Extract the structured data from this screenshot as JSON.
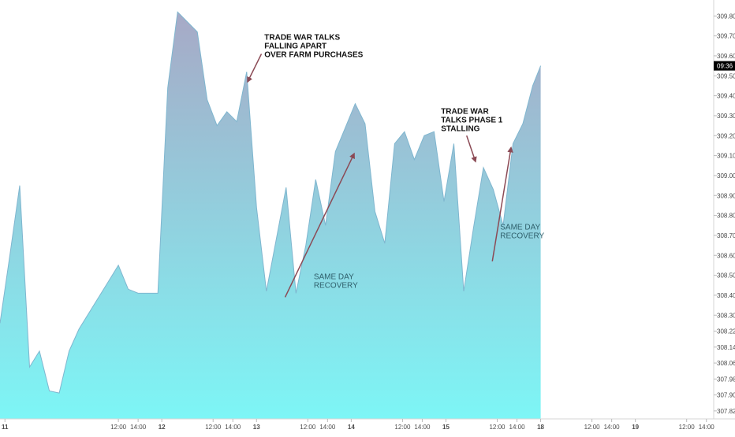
{
  "chart_data": {
    "type": "area",
    "title": "",
    "xlabel": "",
    "ylabel": "",
    "ylim": [
      307.78,
      309.88
    ],
    "colors": {
      "fill_top": "#a7a9c6",
      "fill_bottom": "#7df6f6",
      "line": "#7fb6cf",
      "arrow": "#8b4a55",
      "badge": "#000000",
      "axis_text": "#4a4a4a"
    },
    "y_ticks": [
      "309.80",
      "309.70",
      "309.60",
      "309.50",
      "309.40",
      "309.30",
      "309.20",
      "309.10",
      "309.00",
      "308.90",
      "308.80",
      "308.70",
      "308.60",
      "308.50",
      "308.40",
      "308.30",
      "308.22",
      "308.14",
      "308.06",
      "307.98",
      "307.90",
      "307.82"
    ],
    "x_ticks": [
      {
        "label": "11",
        "bold": true,
        "t": 0.5
      },
      {
        "label": "12:00",
        "bold": false,
        "t": 12
      },
      {
        "label": "14:00",
        "bold": false,
        "t": 14
      },
      {
        "label": "12",
        "bold": true,
        "t": 16.4
      },
      {
        "label": "12:00",
        "bold": false,
        "t": 21.6
      },
      {
        "label": "14:00",
        "bold": false,
        "t": 23.6
      },
      {
        "label": "13",
        "bold": true,
        "t": 26
      },
      {
        "label": "12:00",
        "bold": false,
        "t": 31.2
      },
      {
        "label": "14:00",
        "bold": false,
        "t": 33.2
      },
      {
        "label": "14",
        "bold": true,
        "t": 35.6
      },
      {
        "label": "12:00",
        "bold": false,
        "t": 40.8
      },
      {
        "label": "14:00",
        "bold": false,
        "t": 42.8
      },
      {
        "label": "15",
        "bold": true,
        "t": 45.2
      },
      {
        "label": "12:00",
        "bold": false,
        "t": 50.4
      },
      {
        "label": "14:00",
        "bold": false,
        "t": 52.4
      },
      {
        "label": "18",
        "bold": true,
        "t": 54.8
      },
      {
        "label": "12:00",
        "bold": false,
        "t": 60
      },
      {
        "label": "14:00",
        "bold": false,
        "t": 62
      },
      {
        "label": "19",
        "bold": true,
        "t": 64.4
      },
      {
        "label": "12:00",
        "bold": false,
        "t": 69.6
      },
      {
        "label": "14:00",
        "bold": false,
        "t": 71.6
      }
    ],
    "x_range": [
      0,
      74.5
    ],
    "series": [
      {
        "x": [
          0,
          1,
          2,
          3,
          4,
          5,
          6,
          7,
          8,
          9,
          10,
          11,
          12,
          13,
          14,
          15,
          16,
          17,
          18,
          19,
          20,
          21,
          22,
          23,
          24,
          25,
          26,
          27,
          28,
          29,
          30,
          31,
          32,
          33,
          34,
          35,
          36,
          37,
          38,
          39,
          40,
          41,
          42,
          43,
          44,
          45,
          46,
          47,
          48,
          49,
          50,
          51,
          52,
          53,
          54
        ],
        "values": [
          308.26,
          308.6,
          308.95,
          308.04,
          308.12,
          307.92,
          307.91,
          308.12,
          308.23,
          308.31,
          308.39,
          308.47,
          308.55,
          308.43,
          308.41,
          308.41,
          308.41,
          309.44,
          309.82,
          309.77,
          309.72,
          309.38,
          309.25,
          309.32,
          309.27,
          309.52,
          308.84,
          308.42,
          308.68,
          308.94,
          308.41,
          308.65,
          308.98,
          308.75,
          309.12,
          309.24,
          309.36,
          309.26,
          308.82,
          308.66,
          309.16,
          309.22,
          309.08,
          309.2,
          309.22,
          308.87,
          309.16,
          308.42,
          308.74,
          309.04,
          308.93,
          308.75,
          309.16,
          309.26,
          309.45
        ]
      }
    ],
    "last_time": 54.8,
    "last_value": 309.55,
    "price_badge": "09:36",
    "annotations": [
      {
        "lines": [
          "TRADE WAR TALKS",
          "FALLING APART",
          "OVER FARM PURCHASES"
        ],
        "style": "bold",
        "t": 26.8,
        "v": 309.68
      },
      {
        "lines": [
          "TRADE WAR",
          "TALKS PHASE 1",
          "STALLING"
        ],
        "style": "bold",
        "t": 44.7,
        "v": 309.31
      },
      {
        "lines": [
          "SAME DAY",
          "RECOVERY"
        ],
        "style": "teal",
        "t": 31.8,
        "v": 308.48
      },
      {
        "lines": [
          "SAME DAY",
          "RECOVERY"
        ],
        "style": "teal",
        "t": 50.7,
        "v": 308.73
      }
    ],
    "arrows": [
      {
        "from": [
          26.5,
          309.61
        ],
        "to": [
          25.1,
          309.47
        ]
      },
      {
        "from": [
          47.3,
          309.2
        ],
        "to": [
          48.2,
          309.07
        ]
      },
      {
        "from": [
          28.9,
          308.39
        ],
        "to": [
          35.9,
          309.11
        ]
      },
      {
        "from": [
          49.9,
          308.57
        ],
        "to": [
          51.8,
          309.14
        ]
      }
    ]
  }
}
